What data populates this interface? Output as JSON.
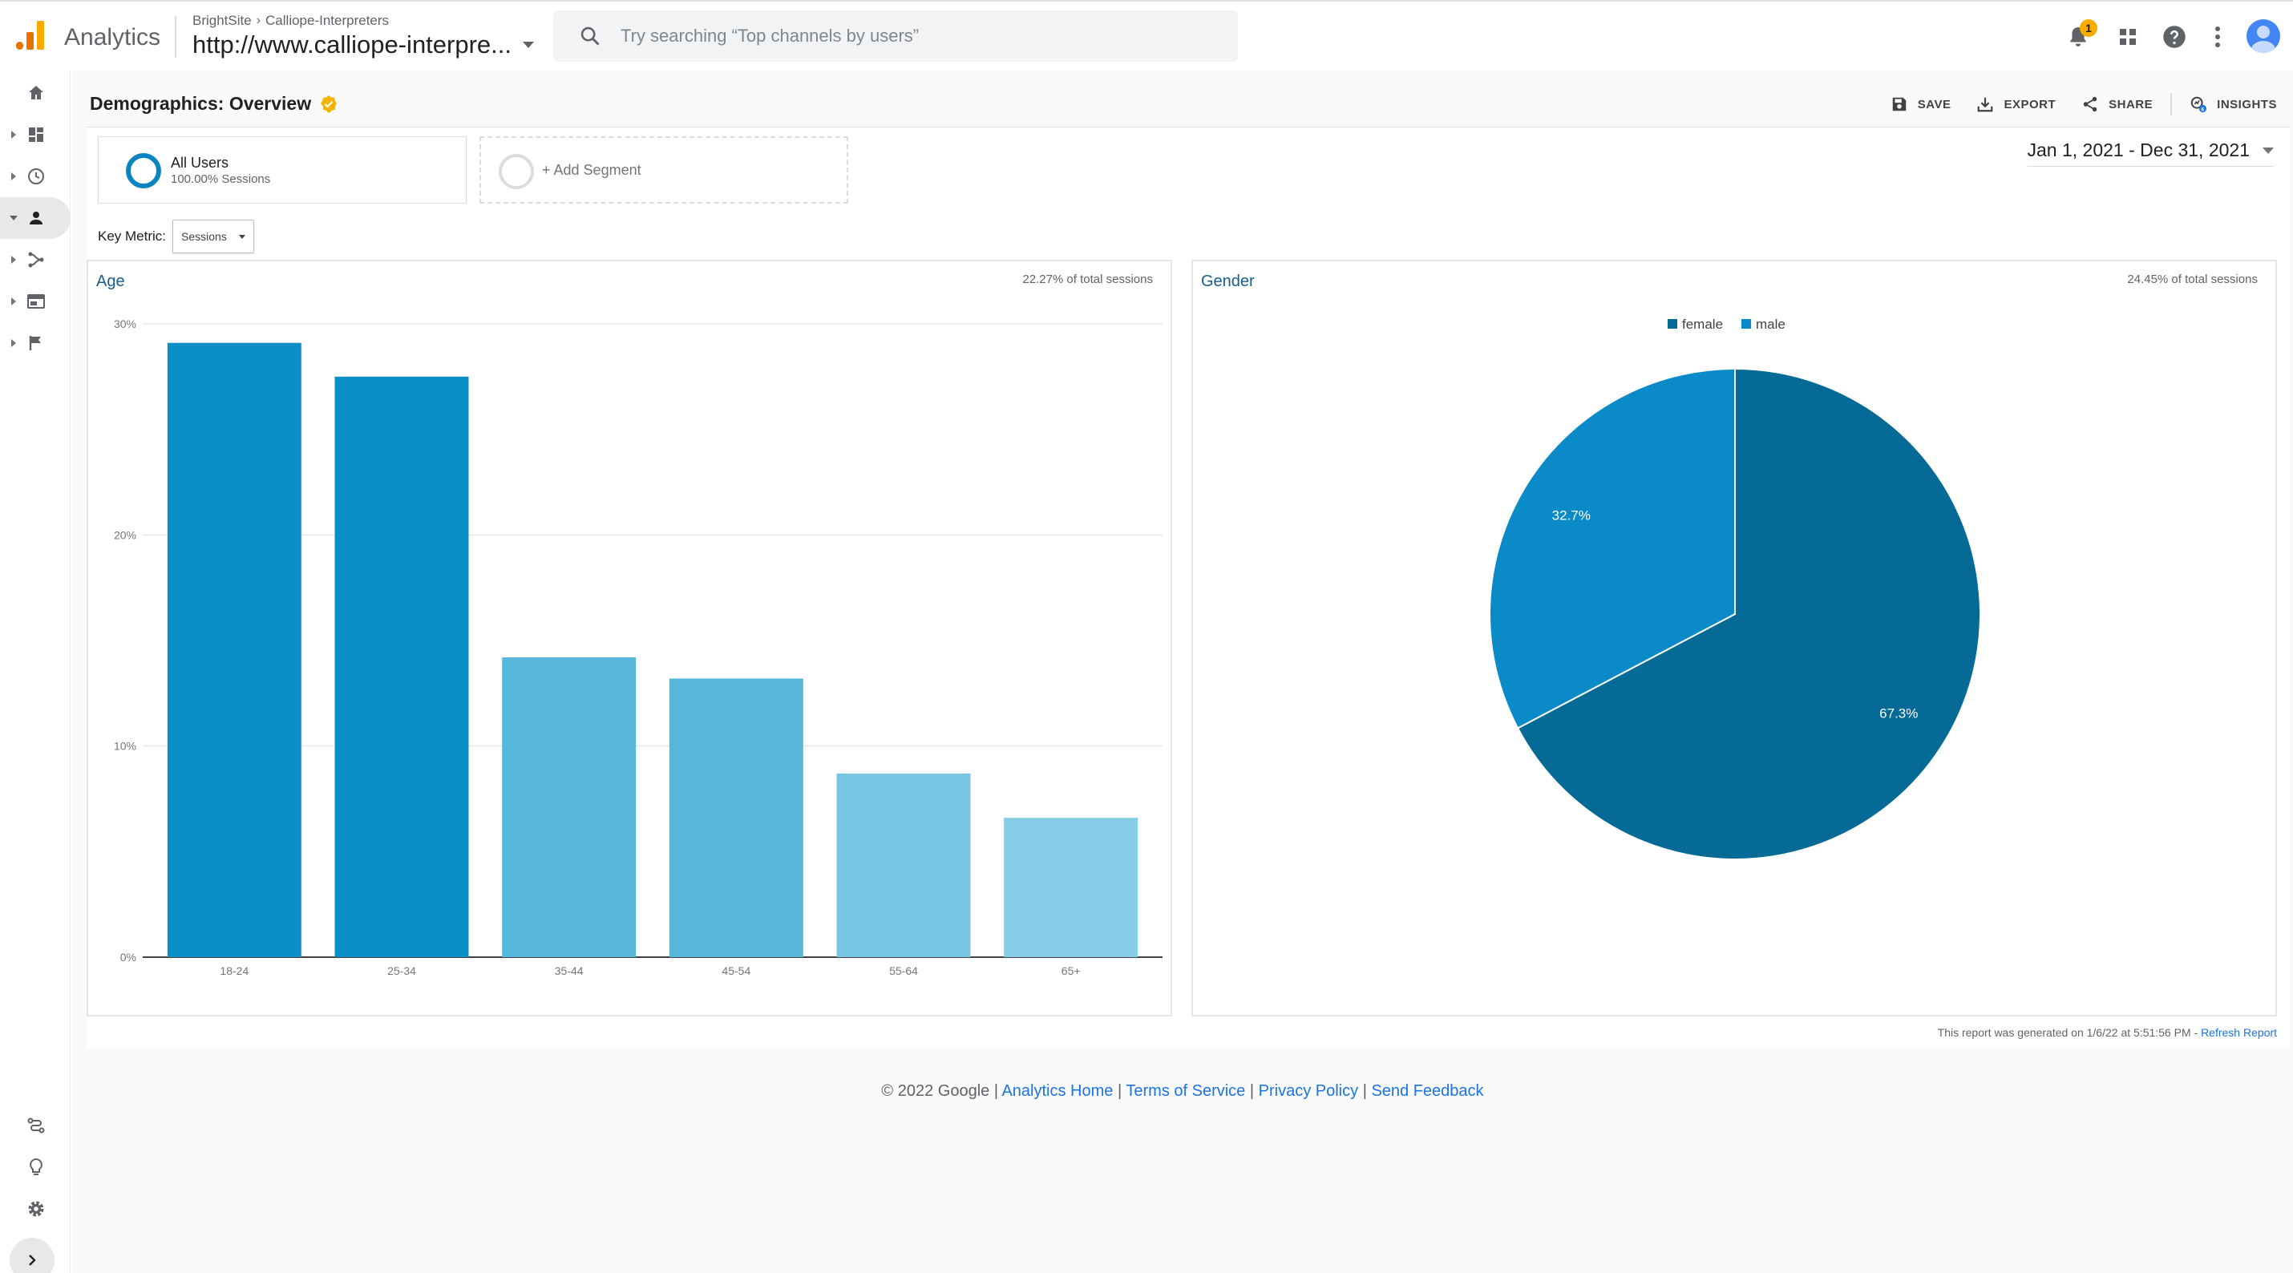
{
  "header": {
    "app_name": "Analytics",
    "breadcrumb": [
      "BrightSite",
      "Calliope-Interpreters"
    ],
    "property": "http://www.calliope-interpre...",
    "search_placeholder": "Try searching “Top channels by users”",
    "notification_count": "1"
  },
  "nav": {
    "items": [
      "home-icon",
      "dashboard-icon",
      "realtime-icon",
      "audience-icon",
      "acquisition-icon",
      "behavior-icon",
      "conversions-icon"
    ],
    "bottom_items": [
      "attribution-icon",
      "discover-icon",
      "admin-icon"
    ]
  },
  "page": {
    "title": "Demographics: Overview",
    "actions": {
      "save": "SAVE",
      "export": "EXPORT",
      "share": "SHARE",
      "insights": "INSIGHTS"
    },
    "segments": {
      "name": "All Users",
      "sub": "100.00% Sessions",
      "add": "+ Add Segment"
    },
    "date_range": "Jan 1, 2021 - Dec 31, 2021",
    "key_metric_label": "Key Metric:",
    "key_metric_value": "Sessions",
    "report_generated": "This report was generated on 1/6/22 at 5:51:56 PM -",
    "refresh_link": "Refresh Report"
  },
  "age_card": {
    "title": "Age",
    "note": "22.27% of total sessions"
  },
  "gender_card": {
    "title": "Gender",
    "note": "24.45% of total sessions"
  },
  "chart_data": [
    {
      "type": "bar",
      "title": "Age",
      "categories": [
        "18-24",
        "25-34",
        "35-44",
        "45-54",
        "55-64",
        "65+"
      ],
      "values": [
        29.1,
        27.5,
        14.2,
        13.2,
        8.7,
        6.6
      ],
      "colors": [
        "#0b8fc9",
        "#0b8fc9",
        "#57b6dc",
        "#57b6dc",
        "#79c6e4",
        "#86cde8"
      ],
      "yticks": [
        "0%",
        "10%",
        "20%",
        "30%"
      ],
      "ylim": [
        0,
        30
      ],
      "grid": true
    },
    {
      "type": "pie",
      "title": "Gender",
      "labels": [
        "female",
        "male"
      ],
      "values": [
        67.3,
        32.7
      ],
      "value_labels": [
        "67.3%",
        "32.7%"
      ],
      "colors": [
        "#056a96",
        "#0a8bc7"
      ],
      "legend": "top"
    }
  ],
  "footer": {
    "copyright": "© 2022 Google |",
    "links": [
      "Analytics Home",
      "Terms of Service",
      "Privacy Policy",
      "Send Feedback"
    ],
    "sep": "|"
  }
}
